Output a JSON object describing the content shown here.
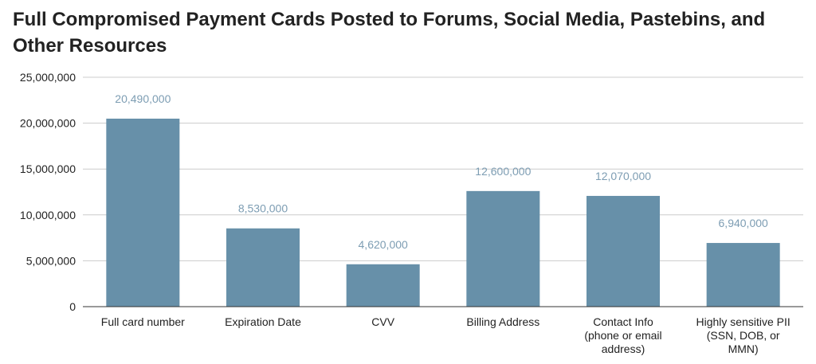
{
  "chart_data": {
    "type": "bar",
    "title": "Full Compromised Payment Cards Posted to Forums, Social Media, Pastebins, and Other Resources",
    "xlabel": "",
    "ylabel": "",
    "categories": [
      [
        "Full card number"
      ],
      [
        "Expiration Date"
      ],
      [
        "CVV"
      ],
      [
        "Billing Address"
      ],
      [
        "Contact Info",
        "(phone or email",
        "address)"
      ],
      [
        "Highly sensitive PII",
        "(SSN, DOB, or",
        "MMN)"
      ]
    ],
    "values": [
      20490000,
      8530000,
      4620000,
      12600000,
      12070000,
      6940000
    ],
    "data_labels": [
      "20,490,000",
      "8,530,000",
      "4,620,000",
      "12,600,000",
      "12,070,000",
      "6,940,000"
    ],
    "yticks": [
      0,
      5000000,
      10000000,
      15000000,
      20000000,
      25000000
    ],
    "ytick_labels": [
      "0",
      "5,000,000",
      "10,000,000",
      "15,000,000",
      "20,000,000",
      "25,000,000"
    ],
    "ylim": [
      0,
      25000000
    ],
    "grid": true,
    "legend": "none",
    "colors": {
      "bar": "#6790a9",
      "data_label": "#7d9db3",
      "gridline": "#cccccc",
      "axis": "#333333"
    }
  }
}
